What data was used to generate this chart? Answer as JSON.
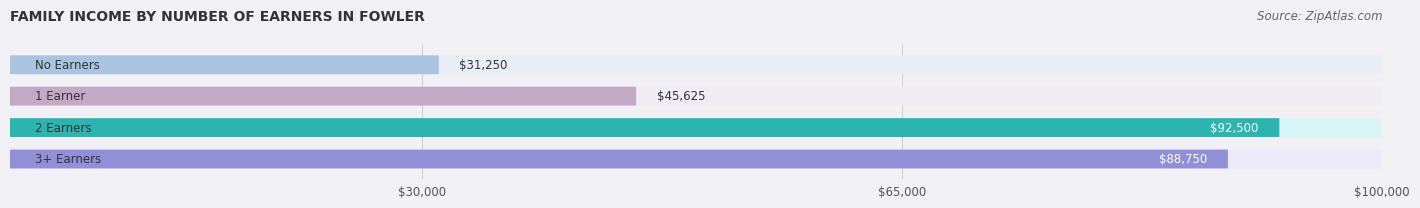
{
  "title": "FAMILY INCOME BY NUMBER OF EARNERS IN FOWLER",
  "source": "Source: ZipAtlas.com",
  "categories": [
    "No Earners",
    "1 Earner",
    "2 Earners",
    "3+ Earners"
  ],
  "values": [
    31250,
    45625,
    92500,
    88750
  ],
  "bar_colors": [
    "#a8c4e0",
    "#c4a8c8",
    "#2ab5b0",
    "#9090d8"
  ],
  "bar_bg_colors": [
    "#e8eef5",
    "#f0ecf5",
    "#d8f5f5",
    "#eceaf8"
  ],
  "value_labels": [
    "$31,250",
    "$45,625",
    "$92,500",
    "$88,750"
  ],
  "xlim": [
    0,
    100000
  ],
  "xticks": [
    30000,
    65000,
    100000
  ],
  "xtick_labels": [
    "$30,000",
    "$65,000",
    "$100,000"
  ],
  "background_color": "#f0f0f5",
  "title_fontsize": 10,
  "source_fontsize": 8.5
}
